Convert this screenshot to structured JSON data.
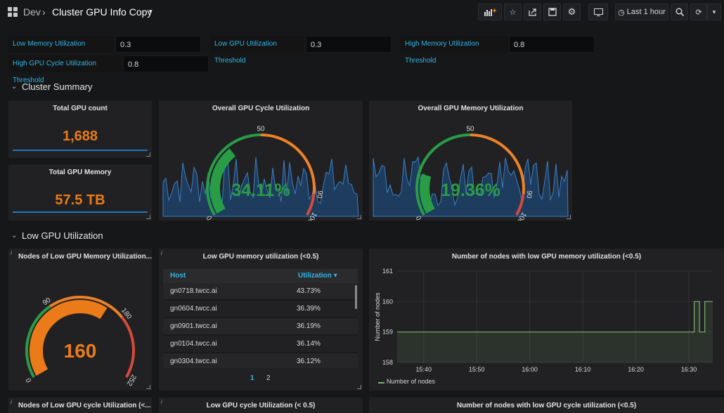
{
  "nav": {
    "folder": "Dev",
    "dashboard_title": "Cluster GPU Info Copy",
    "time_range": "Last 1 hour"
  },
  "variables": [
    {
      "label": "Low Memory Utilization Threshold",
      "value": "0.3"
    },
    {
      "label": "Low GPU Utilization Threshold",
      "value": "0.3"
    },
    {
      "label": "High Memory Utilization Threshold",
      "value": "0.8"
    },
    {
      "label": "High GPU Cycle Utilization Threshold",
      "value": "0.8"
    }
  ],
  "rows": {
    "cluster_summary": "Cluster Summary",
    "low_gpu": "Low GPU Utilization"
  },
  "panels": {
    "total_gpu_count": {
      "title": "Total GPU count",
      "value": "1,688"
    },
    "total_gpu_memory": {
      "title": "Total GPU Memory",
      "value": "57.5 TB"
    },
    "gpu_cycle": {
      "title": "Overall GPU Cycle Utilization",
      "value": "34.11%",
      "gauge_value": 34.11,
      "ticks": [
        "0",
        "50",
        "90",
        "100"
      ]
    },
    "gpu_memory": {
      "title": "Overall GPU Memory Utilization",
      "value": "19.36%",
      "gauge_value": 19.36,
      "ticks": [
        "0",
        "50",
        "90",
        "100"
      ]
    },
    "low_mem_nodes": {
      "title": "Nodes of Low GPU Memory Utilization...",
      "value": "160",
      "gauge_value": 160,
      "ticks": [
        "0",
        "90",
        "180",
        "252"
      ]
    },
    "low_mem_table": {
      "title": "Low GPU memory utilization (<0.5)",
      "col_host": "Host",
      "col_util": "Utilization",
      "rows": [
        {
          "host": "gn0718.twcc.ai",
          "util": "43.73%"
        },
        {
          "host": "gn0604.twcc.ai",
          "util": "36.39%"
        },
        {
          "host": "gn0901.twcc.ai",
          "util": "36.19%"
        },
        {
          "host": "gn0104.twcc.ai",
          "util": "36.14%"
        },
        {
          "host": "gn0304.twcc.ai",
          "util": "36.12%"
        }
      ],
      "pages": [
        "1",
        "2"
      ]
    },
    "low_mem_graph": {
      "title": "Number of nodes with low GPU memory utilization (<0.5)"
    },
    "low_cycle_nodes": {
      "title": "Nodes of Low GPU cycle Utilization (<..."
    },
    "low_cycle_table": {
      "title": "Low GPU cycle Utilization (< 0.5)"
    },
    "low_cycle_graph": {
      "title": "Number of nodes with low GPU cycle utilization (<0.5)"
    }
  },
  "chart_data": {
    "type": "line",
    "title": "Number of nodes with low GPU memory utilization (<0.5)",
    "ylabel": "Number of nodes",
    "xlabel": "",
    "x": [
      "15:35",
      "15:40",
      "15:45",
      "15:50",
      "15:55",
      "16:00",
      "16:05",
      "16:10",
      "16:15",
      "16:20",
      "16:25",
      "16:30",
      "16:31",
      "16:32",
      "16:33",
      "16:34"
    ],
    "series": [
      {
        "name": "Number of nodes",
        "values": [
          159,
          159,
          159,
          159,
          159,
          159,
          159,
          159,
          159,
          159,
          159,
          159,
          160,
          159,
          160,
          160
        ]
      }
    ],
    "x_ticks": [
      "15:40",
      "15:50",
      "16:00",
      "16:10",
      "16:20",
      "16:30"
    ],
    "y_ticks": [
      "158",
      "159",
      "160",
      "161"
    ],
    "ylim": [
      158,
      161
    ],
    "legend": "bottom-left",
    "color": "#7eb26d"
  },
  "colors": {
    "accent": "#33b5e5",
    "stat": "#eb7b18",
    "ok": "#299c46",
    "warn": "#ed8128",
    "crit": "#d44a3a"
  }
}
